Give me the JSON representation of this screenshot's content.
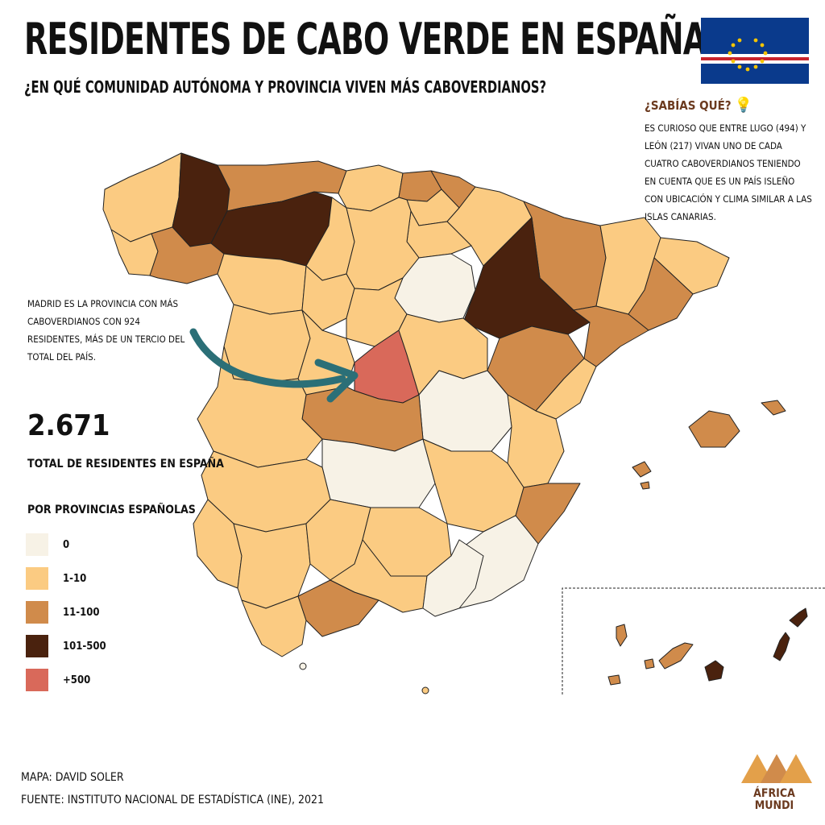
{
  "title": "RESIDENTES DE CABO VERDE EN ESPAÑA",
  "subtitle": "¿EN QUÉ COMUNIDAD AUTÓNOMA Y PROVINCIA VIVEN MÁS CABOVERDIANOS?",
  "fact": {
    "title": "¿SABÍAS QUÉ?",
    "text": "ES CURIOSO QUE ENTRE LUGO (494) Y LEÓN (217) VIVAN UNO DE CADA CUATRO CABOVERDIANOS TENIENDO EN CUENTA QUE ES UN PAÍS ISLEÑO CON UBICACIÓN Y CLIMA SIMILAR A LAS ISLAS CANARIAS."
  },
  "madrid_note": "MADRID ES LA PROVINCIA CON MÁS CABOVERDIANOS CON 924 RESIDENTES, MÁS DE UN TERCIO DEL TOTAL DEL PAÍS.",
  "total": {
    "value": "2.671",
    "label": "TOTAL DE RESIDENTES EN ESPAÑA"
  },
  "legend": {
    "title": "POR PROVINCIAS ESPAÑOLAS",
    "items": [
      {
        "label": "0",
        "color": "#f7f2e6"
      },
      {
        "label": "1-10",
        "color": "#fbcb82"
      },
      {
        "label": "11-100",
        "color": "#d08b4b"
      },
      {
        "label": "101-500",
        "color": "#4a220e"
      },
      {
        "label": "+500",
        "color": "#d9695a"
      }
    ]
  },
  "credits": {
    "map": "MAPA: DAVID SOLER",
    "source": "FUENTE: INSTITUTO NACIONAL DE ESTADÍSTICA (INE), 2021"
  },
  "logo": {
    "line1": "ÁFRICA",
    "line2": "MUNDI"
  },
  "colors": {
    "c0": "#f7f2e6",
    "c1": "#fbcb82",
    "c2": "#d08b4b",
    "c3": "#4a220e",
    "c4": "#d9695a",
    "arrow": "#2b6f77",
    "flag_blue": "#0a3a8c",
    "flag_red": "#c8232c",
    "star": "#f5c400"
  }
}
